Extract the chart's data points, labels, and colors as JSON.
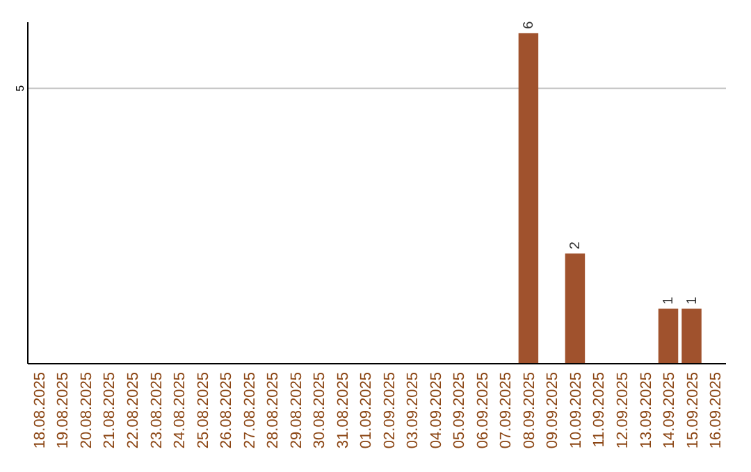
{
  "chart_data": {
    "type": "bar",
    "categories": [
      "18.08.2025",
      "19.08.2025",
      "20.08.2025",
      "21.08.2025",
      "22.08.2025",
      "23.08.2025",
      "24.08.2025",
      "25.08.2025",
      "26.08.2025",
      "27.08.2025",
      "28.08.2025",
      "29.08.2025",
      "30.08.2025",
      "31.08.2025",
      "01.09.2025",
      "02.09.2025",
      "03.09.2025",
      "04.09.2025",
      "05.09.2025",
      "06.09.2025",
      "07.09.2025",
      "08.09.2025",
      "09.09.2025",
      "10.09.2025",
      "11.09.2025",
      "12.09.2025",
      "13.09.2025",
      "14.09.2025",
      "15.09.2025",
      "16.09.2025"
    ],
    "values": [
      null,
      null,
      null,
      null,
      null,
      null,
      null,
      null,
      null,
      null,
      null,
      null,
      null,
      null,
      null,
      null,
      null,
      null,
      null,
      null,
      null,
      6,
      null,
      2,
      null,
      null,
      null,
      1,
      1,
      null
    ],
    "data_labels": true,
    "color": "#a0522d",
    "ylim": [
      0,
      6.2
    ],
    "yticks": [
      5
    ],
    "grid": "y"
  }
}
